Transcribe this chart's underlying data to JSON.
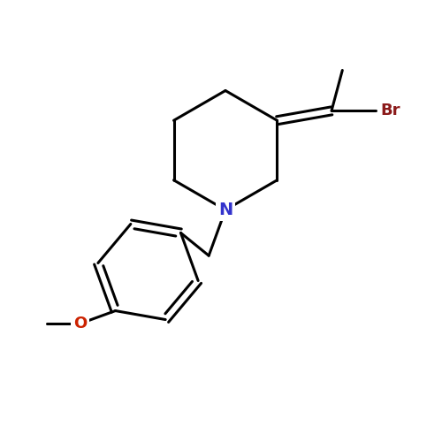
{
  "background_color": "#ffffff",
  "bond_color": "#000000",
  "N_color": "#3333cc",
  "O_color": "#cc2200",
  "Br_color": "#8b1a1a",
  "bond_width": 2.2,
  "fig_size": [
    5.0,
    5.0
  ],
  "dpi": 100,
  "xlim": [
    0,
    10
  ],
  "ylim": [
    0,
    10
  ]
}
